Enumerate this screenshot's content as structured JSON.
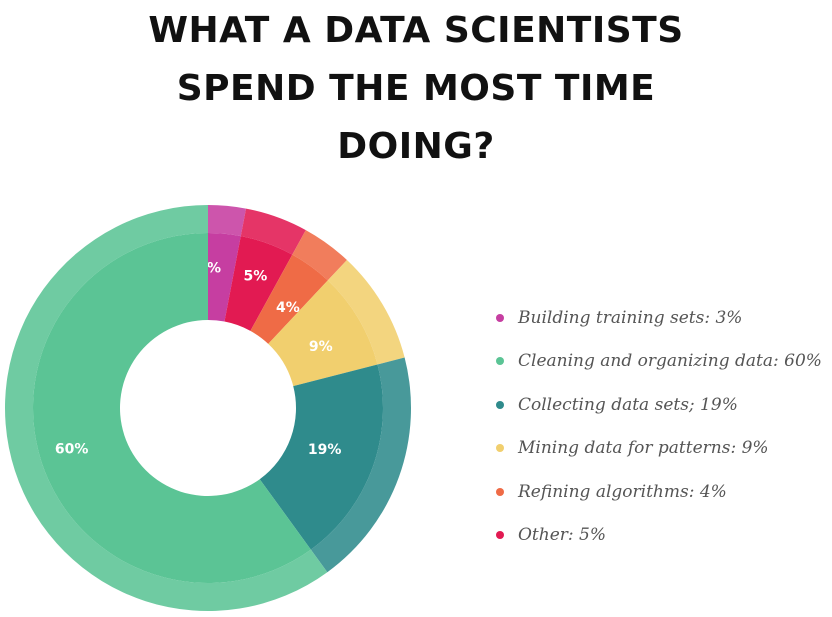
{
  "page_title": {
    "line1": "WHAT A DATA SCIENTISTS",
    "line2": "SPEND THE MOST TIME",
    "line3": "DOING?"
  },
  "chart_data": {
    "type": "pie",
    "title": "WHAT A DATA SCIENTISTS SPEND THE MOST TIME DOING?",
    "style": "donut",
    "legend_position": "right",
    "slices": [
      {
        "label": "Building training sets: 3%",
        "value": 3,
        "value_label": "3%",
        "color": "#c63ea1"
      },
      {
        "label": "Other: 5%",
        "value": 5,
        "value_label": "5%",
        "color": "#e21a52"
      },
      {
        "label": "Refining algorithms: 4%",
        "value": 4,
        "value_label": "4%",
        "color": "#ef6b46"
      },
      {
        "label": "Mining data for patterns: 9%",
        "value": 9,
        "value_label": "9%",
        "color": "#f1cf6e"
      },
      {
        "label": "Collecting data sets; 19%",
        "value": 19,
        "value_label": "19%",
        "color": "#2f8b8c"
      },
      {
        "label": "Cleaning and organizing data: 60%",
        "value": 60,
        "value_label": "60%",
        "color": "#5bc495"
      }
    ],
    "legend": [
      {
        "label": "Building training sets: 3%",
        "color": "#c63ea1"
      },
      {
        "label": "Cleaning and organizing data: 60%",
        "color": "#5bc495"
      },
      {
        "label": "Collecting data sets; 19%",
        "color": "#2f8b8c"
      },
      {
        "label": "Mining data for patterns: 9%",
        "color": "#f1cf6e"
      },
      {
        "label": "Refining algorithms: 4%",
        "color": "#ef6b46"
      },
      {
        "label": "Other: 5%",
        "color": "#e21a52"
      }
    ]
  }
}
